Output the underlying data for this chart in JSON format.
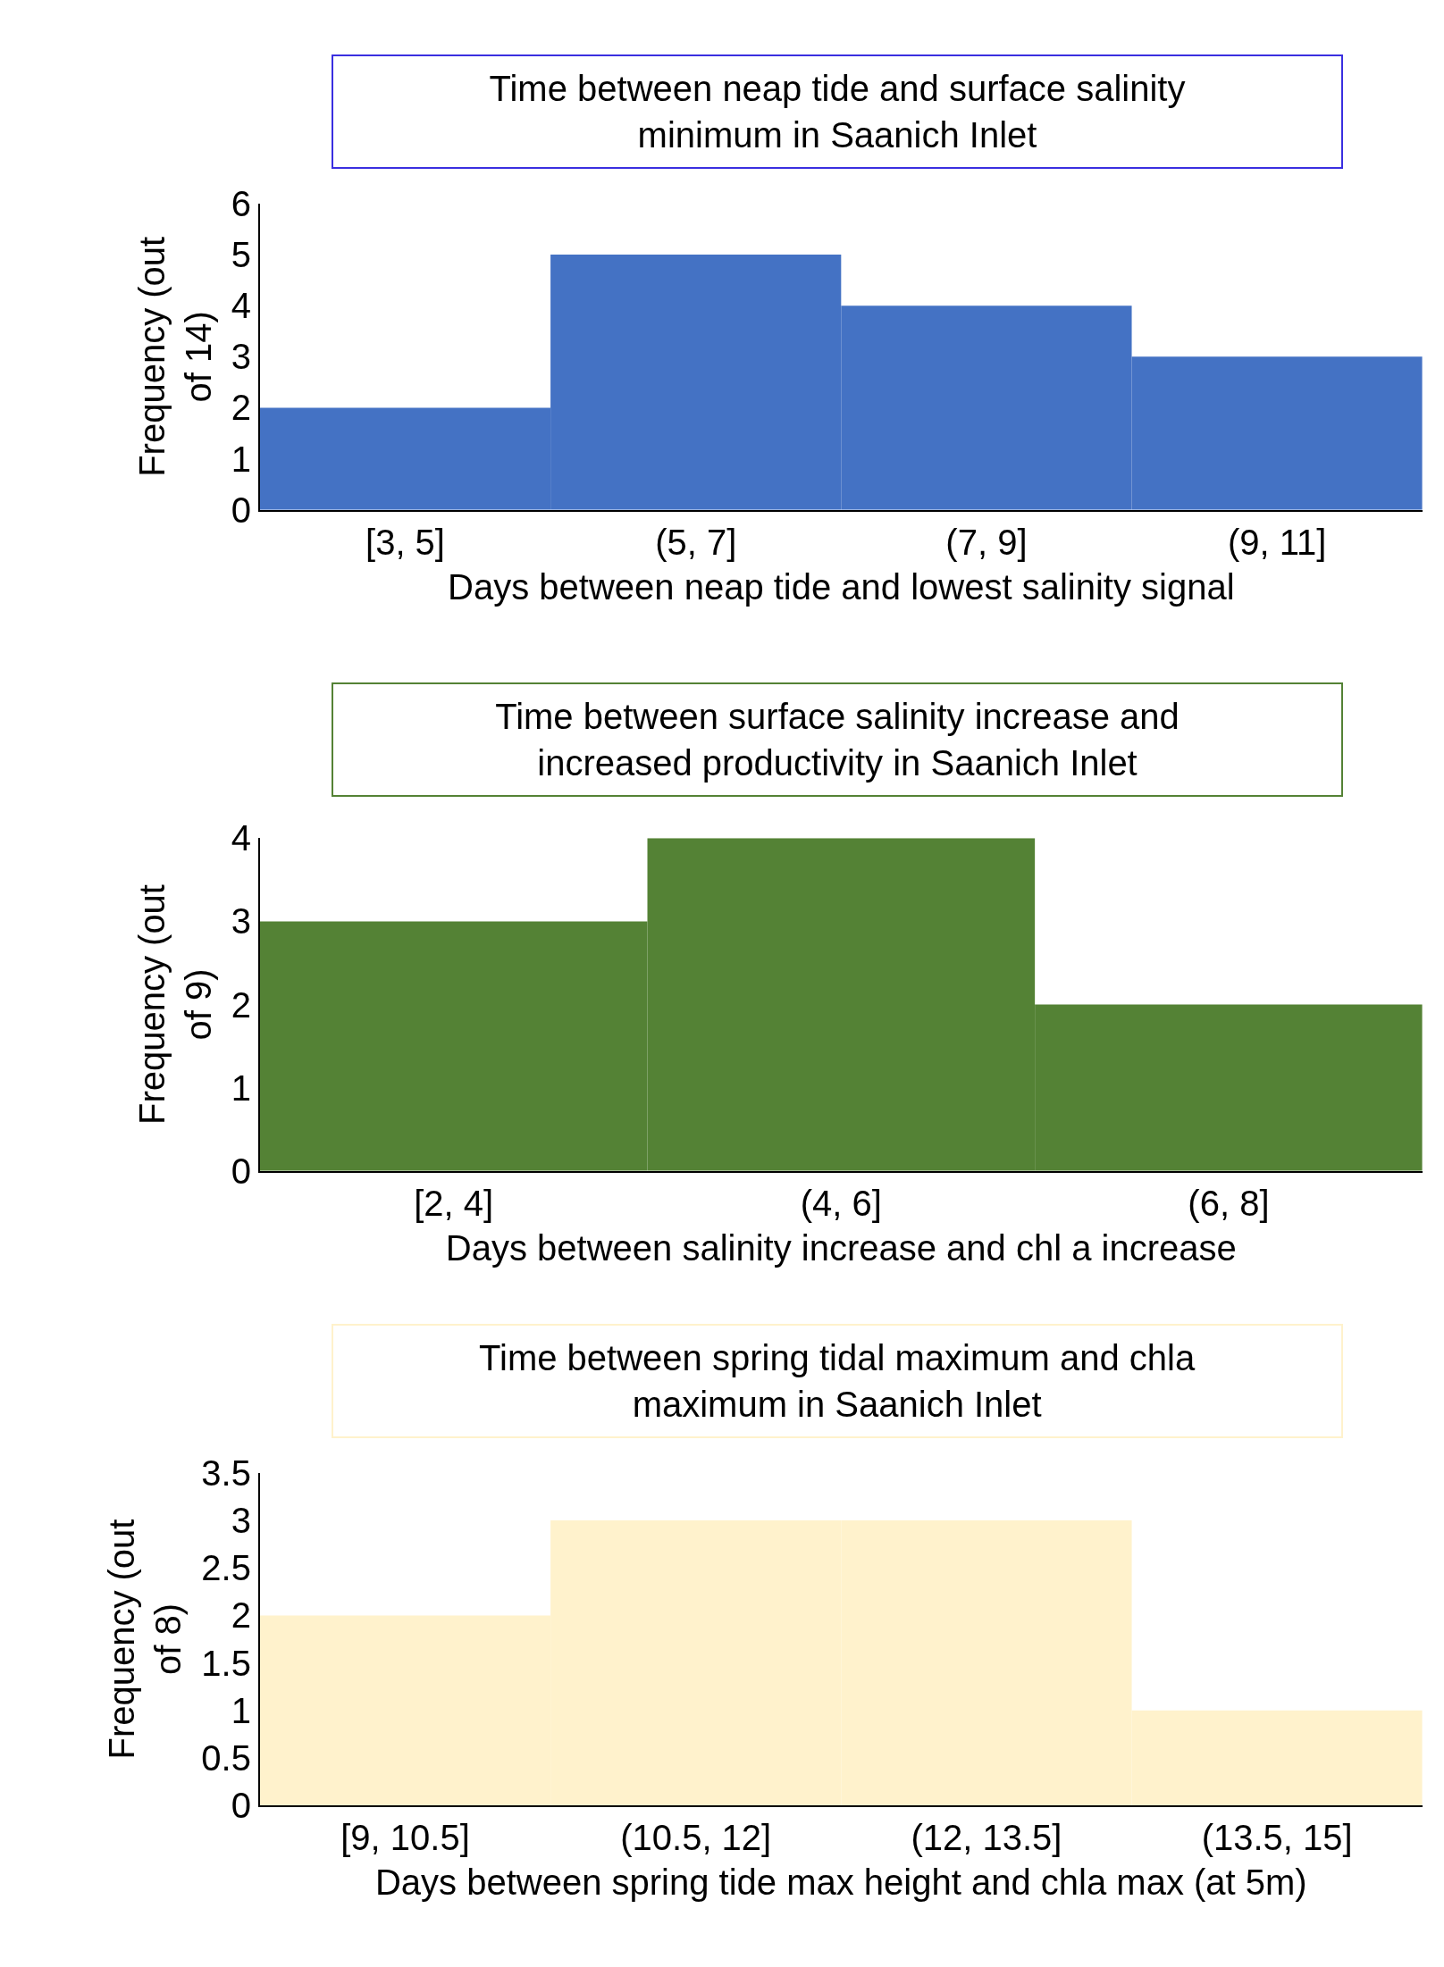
{
  "chart_data": [
    {
      "type": "bar",
      "title": "Time between neap tide and surface salinity minimum in Saanich Inlet",
      "xlabel": "Days between neap tide and lowest salinity signal",
      "ylabel": "Frequency (out of 14)",
      "categories": [
        "[3, 5]",
        "(5, 7]",
        "(7, 9]",
        "(9, 11]"
      ],
      "values": [
        2,
        5,
        4,
        3
      ],
      "color": "#4472c4",
      "ylim": [
        0,
        6
      ],
      "yticks": [
        0,
        1,
        2,
        3,
        4,
        5,
        6
      ]
    },
    {
      "type": "bar",
      "title": "Time between surface salinity increase and increased productivity in Saanich Inlet",
      "xlabel": "Days between salinity increase and chl a increase",
      "ylabel": "Frequency (out of 9)",
      "categories": [
        "[2, 4]",
        "(4, 6]",
        "(6, 8]"
      ],
      "values": [
        3,
        4,
        2
      ],
      "color": "#548235",
      "ylim": [
        0,
        4
      ],
      "yticks": [
        0,
        1,
        2,
        3,
        4
      ]
    },
    {
      "type": "bar",
      "title": "Time between spring tidal maximum and chla maximum in Saanich Inlet",
      "xlabel": "Days between spring tide max height and chla max (at 5m)",
      "ylabel": "Frequency (out of 8)",
      "categories": [
        "[9, 10.5]",
        "(10.5, 12]",
        "(12, 13.5]",
        "(13.5, 15]"
      ],
      "values": [
        2,
        3,
        3,
        1
      ],
      "color": "#fff2cc",
      "ylim": [
        0,
        3.5
      ],
      "yticks": [
        0,
        0.5,
        1,
        1.5,
        2,
        2.5,
        3,
        3.5
      ]
    }
  ]
}
